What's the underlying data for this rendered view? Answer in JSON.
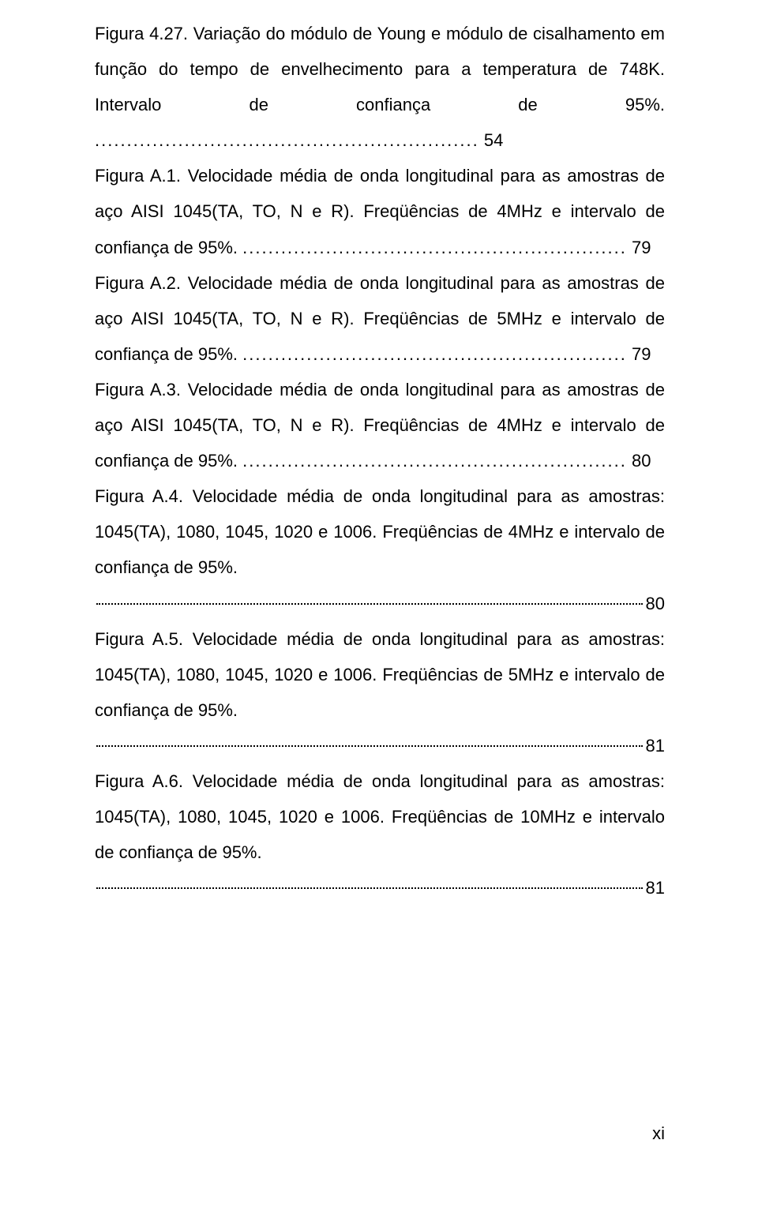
{
  "figures": [
    {
      "label": "Figura 4.27.",
      "desc": "Variação do módulo de Young e módulo de cisalhamento em função do tempo de envelhecimento para a temperatura de 748K. Intervalo de confiança de 95%.",
      "page": "54",
      "style": "singleblock"
    },
    {
      "label": "Figura A.1.",
      "desc": "Velocidade média de onda longitudinal para as amostras de aço AISI 1045(TA, TO, N e R). Freqüências de 4MHz e intervalo de confiança de 95%.",
      "page": "79",
      "style": "singleblock"
    },
    {
      "label": "Figura A.2.",
      "desc": "Velocidade média de onda longitudinal para as amostras de aço AISI 1045(TA, TO, N e R). Freqüências de 5MHz e intervalo de confiança de 95%.",
      "page": "79",
      "style": "singleblock"
    },
    {
      "label": "Figura A.3.",
      "desc": "Velocidade média de onda longitudinal para as amostras de aço AISI 1045(TA, TO, N e R). Freqüências de 4MHz e intervalo de confiança de 95%.",
      "page": "80",
      "style": "singleblock"
    },
    {
      "label": "Figura A.4.",
      "desc": "Velocidade média de onda longitudinal para as amostras: 1045(TA), 1080, 1045, 1020 e 1006. Freqüências de 4MHz e intervalo de confiança de 95%.",
      "page": "80",
      "style": "twoblock"
    },
    {
      "label": "Figura A.5.",
      "desc": "Velocidade média de onda longitudinal para as amostras: 1045(TA), 1080, 1045, 1020 e 1006. Freqüências de 5MHz e intervalo de confiança de 95%.",
      "page": "81",
      "style": "twoblock"
    },
    {
      "label": "Figura A.6.",
      "desc": "Velocidade média de onda longitudinal para as amostras: 1045(TA), 1080, 1045, 1020 e 1006. Freqüências de 10MHz e intervalo de confiança de 95%.",
      "page": "81",
      "style": "twoblock"
    }
  ],
  "footer": "xi",
  "colors": {
    "text": "#000000",
    "background": "#ffffff"
  },
  "font": {
    "family": "Arial",
    "body_size_pt": 12,
    "line_height": 2.0
  }
}
